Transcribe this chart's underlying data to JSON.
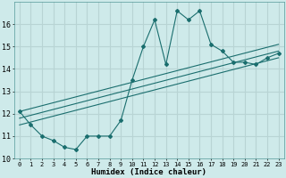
{
  "xlabel": "Humidex (Indice chaleur)",
  "ylabel": "",
  "bg_color": "#ceeaea",
  "grid_color": "#b8d4d4",
  "line_color": "#1a6e6e",
  "xlim": [
    -0.5,
    23.5
  ],
  "ylim": [
    10,
    17
  ],
  "xticks": [
    0,
    1,
    2,
    3,
    4,
    5,
    6,
    7,
    8,
    9,
    10,
    11,
    12,
    13,
    14,
    15,
    16,
    17,
    18,
    19,
    20,
    21,
    22,
    23
  ],
  "yticks": [
    10,
    11,
    12,
    13,
    14,
    15,
    16
  ],
  "series1_x": [
    0,
    1,
    2,
    3,
    4,
    5,
    6,
    7,
    8,
    9,
    10,
    11,
    12,
    13,
    14,
    15,
    16,
    17,
    18,
    19,
    20,
    21,
    22,
    23
  ],
  "series1_y": [
    12.1,
    11.5,
    11.0,
    10.8,
    10.5,
    10.4,
    11.0,
    11.0,
    11.0,
    11.7,
    13.5,
    15.0,
    16.2,
    14.2,
    16.6,
    16.2,
    16.6,
    15.1,
    14.8,
    14.3,
    14.3,
    14.2,
    14.5,
    14.7
  ],
  "series2_x": [
    0,
    23
  ],
  "series2_y": [
    11.5,
    14.5
  ],
  "series3_x": [
    0,
    23
  ],
  "series3_y": [
    11.8,
    14.8
  ],
  "series4_x": [
    0,
    23
  ],
  "series4_y": [
    12.1,
    15.1
  ],
  "xtick_fontsize": 5.0,
  "ytick_fontsize": 6.0,
  "xlabel_fontsize": 6.5
}
